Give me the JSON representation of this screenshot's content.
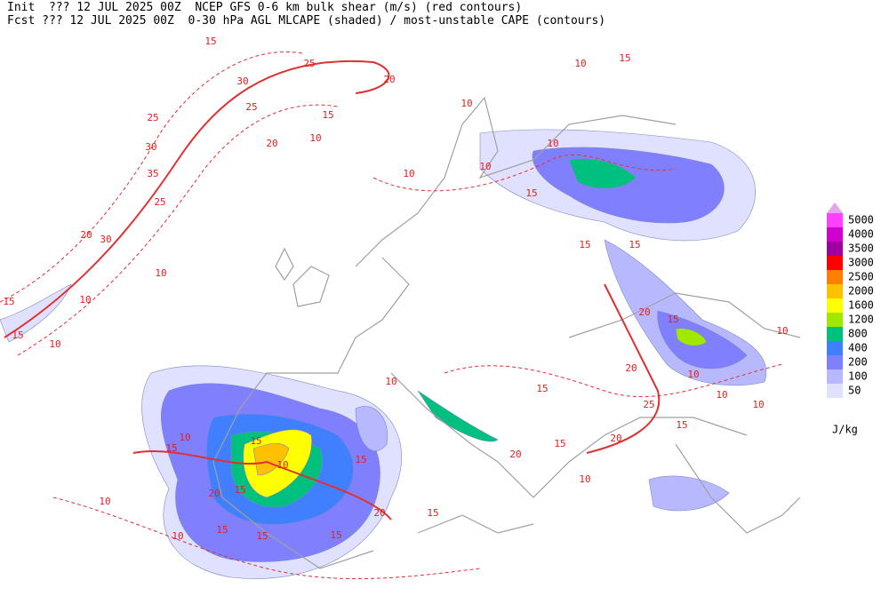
{
  "header": {
    "line1": "Init  ??? 12 JUL 2025 00Z  NCEP GFS 0-6 km bulk shear (m/s) (red contours)",
    "line2": "Fcst ??? 12 JUL 2025 00Z  0-30 hPa AGL MLCAPE (shaded) / most-unstable CAPE (contours)"
  },
  "legend": {
    "top_color": "#e8a0f0",
    "items": [
      {
        "label": "5000",
        "color": "#ff40ff"
      },
      {
        "label": "4000",
        "color": "#d000d0"
      },
      {
        "label": "3500",
        "color": "#a000a0"
      },
      {
        "label": "3000",
        "color": "#ff0000"
      },
      {
        "label": "2500",
        "color": "#ff8000"
      },
      {
        "label": "2000",
        "color": "#ffc000"
      },
      {
        "label": "1600",
        "color": "#ffff00"
      },
      {
        "label": "1200",
        "color": "#a0e800"
      },
      {
        "label": "800",
        "color": "#00c080"
      },
      {
        "label": "400",
        "color": "#4080ff"
      },
      {
        "label": "200",
        "color": "#8080ff"
      },
      {
        "label": "100",
        "color": "#b8b8ff"
      },
      {
        "label": "50",
        "color": "#e0e0ff"
      }
    ],
    "unit": "J/kg"
  },
  "contour_labels": [
    "15",
    "25",
    "20",
    "30",
    "25",
    "15",
    "20",
    "25",
    "30",
    "35",
    "25",
    "20",
    "30",
    "10",
    "15",
    "10",
    "15",
    "10",
    "10",
    "15",
    "10",
    "10",
    "10",
    "10",
    "10",
    "15",
    "15",
    "15",
    "20",
    "15",
    "10",
    "10",
    "15",
    "20",
    "25",
    "15",
    "20",
    "15",
    "20",
    "10",
    "15",
    "10",
    "20",
    "15",
    "15",
    "20",
    "15",
    "15",
    "10",
    "15",
    "15",
    "10",
    "10",
    "10",
    "10",
    "15",
    "10"
  ]
}
